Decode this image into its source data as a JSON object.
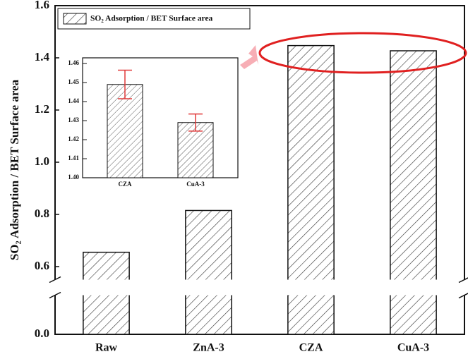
{
  "chart_data": [
    {
      "type": "bar",
      "y_label": "SO₂ Adsorption / BET Surface area",
      "categories": [
        "Raw",
        "ZnA-3",
        "CZA",
        "CuA-3"
      ],
      "series": [
        {
          "name": "SO₂ Adsorption / BET Surface area",
          "color": "#333333",
          "values": [
            0.655,
            0.815,
            1.447,
            1.427
          ]
        }
      ],
      "ylim": [
        0,
        1.6
      ],
      "ybreak": [
        0.15,
        0.55
      ],
      "yticks": [
        {
          "value": 0,
          "label": "0.0"
        },
        0.6,
        0.8,
        {
          "value": 1,
          "label": "1.0"
        },
        1.2,
        1.4,
        1.6
      ],
      "hatch": true
    },
    {
      "type": "bar",
      "categories": [
        "CZA",
        "CuA-3"
      ],
      "values": [
        1.449,
        1.429
      ],
      "errors": [
        0.0075,
        0.0045
      ],
      "color": "#555555",
      "error_color": "#e03a3a",
      "ylim": [
        1.4,
        1.463
      ],
      "yticks": [
        {
          "value": 1.4,
          "label": "1.40"
        },
        1.41,
        1.42,
        1.43,
        1.44,
        1.45,
        1.46
      ],
      "hatch": true
    }
  ]
}
